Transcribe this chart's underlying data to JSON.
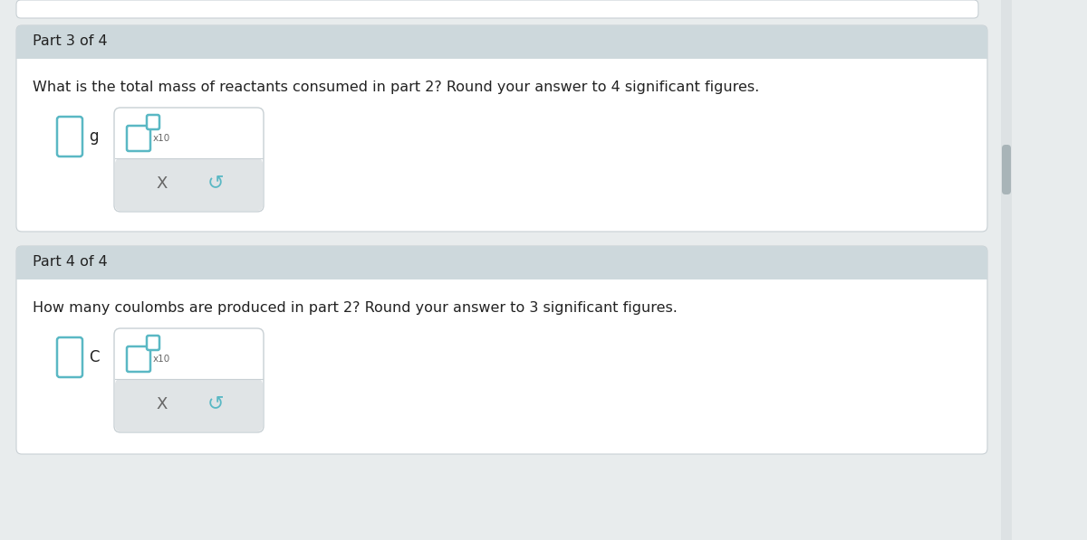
{
  "bg_color": "#e8eced",
  "white": "#ffffff",
  "panel_header_color": "#cdd8dc",
  "panel_bg_color": "#ffffff",
  "border_color": "#c8d0d4",
  "teal_color": "#5ab8c4",
  "button_bg": "#e0e4e6",
  "text_color": "#222222",
  "light_text": "#666666",
  "part3_header": "Part 3 of 4",
  "part3_question": "What is the total mass of reactants consumed in part 2? Round your answer to 4 significant figures.",
  "part3_unit": "g",
  "part3_x10": "x10",
  "part4_header": "Part 4 of 4",
  "part4_question": "How many coulombs are produced in part 2? Round your answer to 3 significant figures.",
  "part4_unit": "C",
  "part4_x10": "x10",
  "x_symbol": "X",
  "refresh_symbol": "↺",
  "scrollbar_track": "#dde2e4",
  "scrollbar_thumb": "#a8b4b8",
  "top_panel_color": "#ffffff",
  "gap_color": "#e8eced"
}
